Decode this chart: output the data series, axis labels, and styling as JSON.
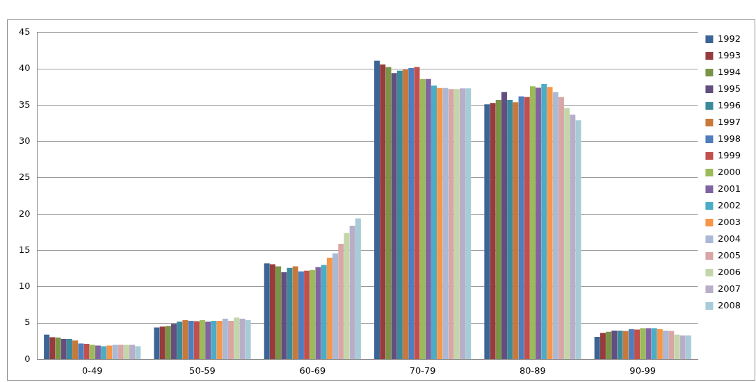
{
  "chart_data": {
    "type": "bar",
    "categories": [
      "0-49",
      "50-59",
      "60-69",
      "70-79",
      "80-89",
      "90-99"
    ],
    "ylim": [
      0,
      45
    ],
    "yticks": [
      0,
      5,
      10,
      15,
      20,
      25,
      30,
      35,
      40,
      45
    ],
    "grid": "y",
    "legend": "right",
    "series": [
      {
        "name": "1992",
        "color": "#3c6494",
        "values": [
          3.4,
          4.4,
          13.2,
          41.1,
          35.1,
          3.1
        ]
      },
      {
        "name": "1993",
        "color": "#963c3c",
        "values": [
          3.05,
          4.5,
          13.1,
          40.6,
          35.3,
          3.65
        ]
      },
      {
        "name": "1994",
        "color": "#7a9446",
        "values": [
          3.0,
          4.6,
          12.8,
          40.25,
          35.7,
          3.8
        ]
      },
      {
        "name": "1995",
        "color": "#634e7f",
        "values": [
          2.8,
          4.9,
          12.0,
          39.4,
          36.8,
          3.95
        ]
      },
      {
        "name": "1996",
        "color": "#3a8a9b",
        "values": [
          2.8,
          5.2,
          12.6,
          39.75,
          35.7,
          3.95
        ]
      },
      {
        "name": "1997",
        "color": "#c8793a",
        "values": [
          2.6,
          5.4,
          12.8,
          39.9,
          35.4,
          3.9
        ]
      },
      {
        "name": "1998",
        "color": "#4f7dbd",
        "values": [
          2.2,
          5.3,
          12.1,
          40.1,
          36.2,
          4.15
        ]
      },
      {
        "name": "1999",
        "color": "#c0504d",
        "values": [
          2.15,
          5.25,
          12.2,
          40.25,
          36.1,
          4.1
        ]
      },
      {
        "name": "2000",
        "color": "#9bbb59",
        "values": [
          2.0,
          5.4,
          12.3,
          38.6,
          37.6,
          4.3
        ]
      },
      {
        "name": "2001",
        "color": "#8064a2",
        "values": [
          1.9,
          5.2,
          12.7,
          38.6,
          37.4,
          4.3
        ]
      },
      {
        "name": "2002",
        "color": "#4bacc6",
        "values": [
          1.8,
          5.3,
          13.0,
          37.7,
          37.9,
          4.3
        ]
      },
      {
        "name": "2003",
        "color": "#f79646",
        "values": [
          1.9,
          5.3,
          14.0,
          37.35,
          37.5,
          4.15
        ]
      },
      {
        "name": "2004",
        "color": "#a9b9d6",
        "values": [
          2.0,
          5.6,
          14.6,
          37.35,
          36.8,
          3.95
        ]
      },
      {
        "name": "2005",
        "color": "#d7a6a5",
        "values": [
          2.0,
          5.3,
          15.9,
          37.2,
          36.1,
          3.9
        ]
      },
      {
        "name": "2006",
        "color": "#c4d6a9",
        "values": [
          2.0,
          5.75,
          17.4,
          37.2,
          34.6,
          3.4
        ]
      },
      {
        "name": "2007",
        "color": "#b8aec9",
        "values": [
          2.0,
          5.6,
          18.4,
          37.3,
          33.7,
          3.3
        ]
      },
      {
        "name": "2008",
        "color": "#a7cbd7",
        "values": [
          1.8,
          5.4,
          19.4,
          37.3,
          32.9,
          3.3
        ]
      }
    ]
  }
}
